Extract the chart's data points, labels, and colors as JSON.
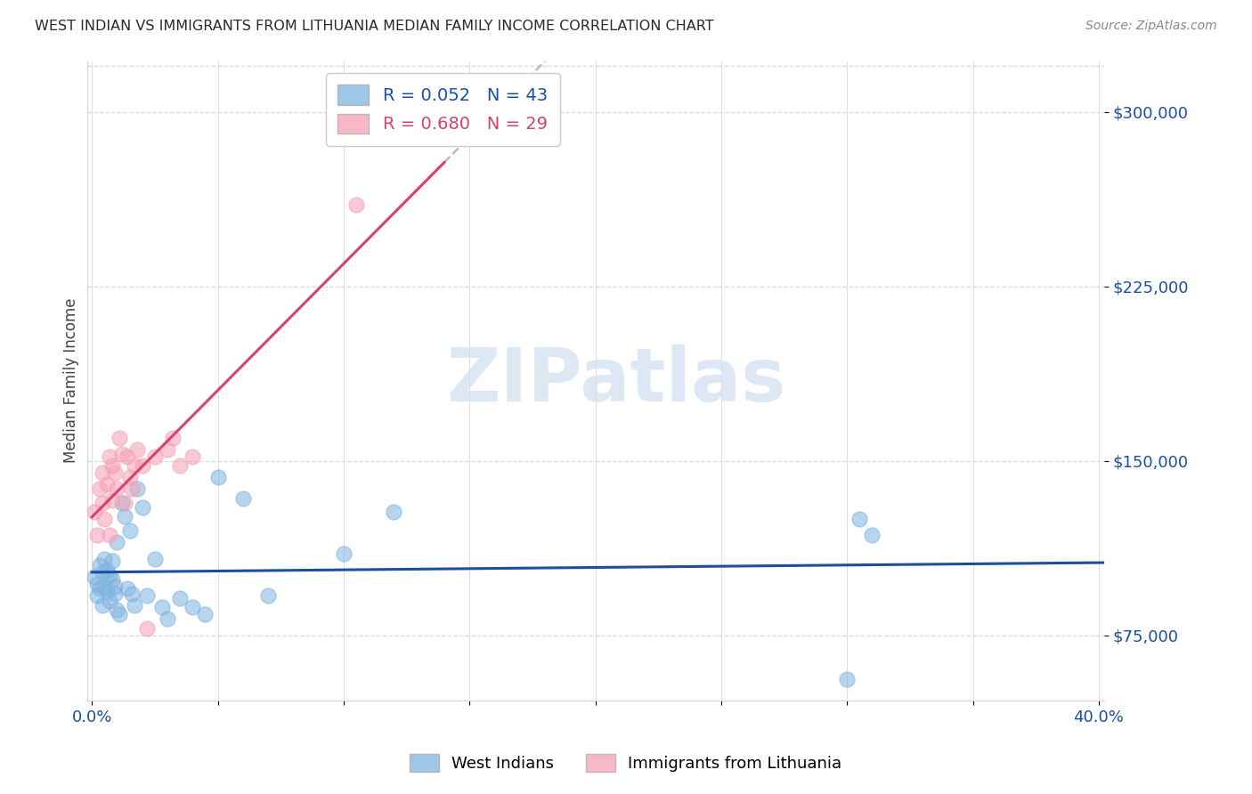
{
  "title": "WEST INDIAN VS IMMIGRANTS FROM LITHUANIA MEDIAN FAMILY INCOME CORRELATION CHART",
  "source": "Source: ZipAtlas.com",
  "ylabel": "Median Family Income",
  "xlim": [
    -0.002,
    0.402
  ],
  "ylim": [
    47000,
    322000
  ],
  "ytick_vals": [
    75000,
    150000,
    225000,
    300000
  ],
  "ytick_labels": [
    "$75,000",
    "$150,000",
    "$225,000",
    "$300,000"
  ],
  "xtick_vals": [
    0.0,
    0.05,
    0.1,
    0.15,
    0.2,
    0.25,
    0.3,
    0.35,
    0.4
  ],
  "xtick_labels": [
    "0.0%",
    "",
    "",
    "",
    "",
    "",
    "",
    "",
    "40.0%"
  ],
  "legend_r1": "R = 0.052   N = 43",
  "legend_r2": "R = 0.680   N = 29",
  "blue_color": "#7EB3E0",
  "pink_color": "#F5A0B5",
  "trend_blue_color": "#1A4FA0",
  "trend_pink_color": "#D94070",
  "watermark_color": "#D0DFF0",
  "background_color": "#FFFFFF",
  "grid_color": "#D8D8D8",
  "west_indians_x": [
    0.001,
    0.002,
    0.002,
    0.003,
    0.003,
    0.004,
    0.004,
    0.005,
    0.005,
    0.006,
    0.006,
    0.007,
    0.007,
    0.008,
    0.008,
    0.009,
    0.009,
    0.01,
    0.01,
    0.011,
    0.012,
    0.013,
    0.014,
    0.015,
    0.016,
    0.017,
    0.018,
    0.02,
    0.022,
    0.025,
    0.028,
    0.03,
    0.035,
    0.04,
    0.045,
    0.05,
    0.06,
    0.07,
    0.1,
    0.12,
    0.3,
    0.305,
    0.31
  ],
  "west_indians_y": [
    100000,
    97000,
    92000,
    105000,
    95000,
    102000,
    88000,
    108000,
    96000,
    103000,
    94000,
    101000,
    90000,
    99000,
    107000,
    96000,
    93000,
    86000,
    115000,
    84000,
    132000,
    126000,
    95000,
    120000,
    93000,
    88000,
    138000,
    130000,
    92000,
    108000,
    87000,
    82000,
    91000,
    87000,
    84000,
    143000,
    134000,
    92000,
    110000,
    128000,
    56000,
    125000,
    118000
  ],
  "lithuania_x": [
    0.001,
    0.002,
    0.003,
    0.004,
    0.004,
    0.005,
    0.006,
    0.007,
    0.007,
    0.008,
    0.008,
    0.009,
    0.01,
    0.011,
    0.012,
    0.013,
    0.014,
    0.015,
    0.016,
    0.017,
    0.018,
    0.02,
    0.022,
    0.025,
    0.03,
    0.032,
    0.035,
    0.04,
    0.105
  ],
  "lithuania_y": [
    128000,
    118000,
    138000,
    145000,
    132000,
    125000,
    140000,
    152000,
    118000,
    133000,
    148000,
    145000,
    138000,
    160000,
    153000,
    132000,
    152000,
    143000,
    138000,
    148000,
    155000,
    148000,
    78000,
    152000,
    155000,
    160000,
    148000,
    152000,
    260000
  ],
  "blue_trend_slope": 15000,
  "blue_trend_intercept": 98000,
  "pink_trend_slope": 1400000,
  "pink_trend_intercept": 103000,
  "dashed_gray_color": "#BBBBBB"
}
